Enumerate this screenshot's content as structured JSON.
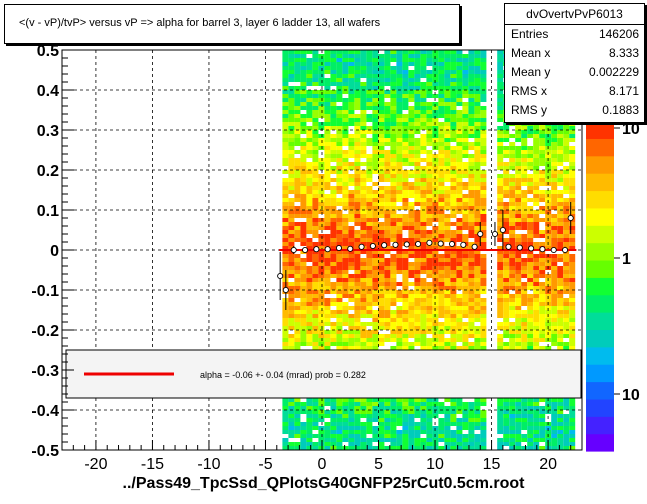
{
  "title": "<(v - vP)/tvP> versus   vP => alpha for barrel 3, layer 6 ladder 13, all wafers",
  "footer": "../Pass49_TpcSsd_QPlotsG40GNFP25rCut0.5cm.root",
  "stats": {
    "name": "dvOvertvPvP6013",
    "rows": [
      {
        "key": "Entries",
        "value": "146206"
      },
      {
        "key": "Mean x",
        "value": "8.333"
      },
      {
        "key": "Mean y",
        "value": "0.002229"
      },
      {
        "key": "RMS x",
        "value": "8.171"
      },
      {
        "key": "RMS y",
        "value": "0.1883"
      }
    ]
  },
  "legend": {
    "text": "alpha =   -0.06 +-  0.04 (mrad) prob = 0.282",
    "line_color": "#ee0000"
  },
  "colorbar": {
    "labels": [
      "10",
      "1",
      "10"
    ],
    "colors": [
      "#6600ff",
      "#4422ff",
      "#2244ff",
      "#1166ff",
      "#0099ff",
      "#00bbee",
      "#00ccbb",
      "#00dd99",
      "#00ee66",
      "#11ff33",
      "#66ff00",
      "#99ff00",
      "#ccff00",
      "#ffff00",
      "#ffdd00",
      "#ffbb00",
      "#ff9900",
      "#ff6600",
      "#ff3300"
    ]
  },
  "chart_data": {
    "type": "heatmap",
    "title": "<(v - vP)/tvP> versus   vP => alpha for barrel 3, layer 6 ladder 13, all wafers",
    "xlim": [
      -23,
      23
    ],
    "ylim": [
      -0.5,
      0.5
    ],
    "x_ticks": [
      -20,
      -15,
      -10,
      -5,
      0,
      5,
      10,
      15,
      20
    ],
    "x_tick_labels": [
      "-20",
      "-15",
      "-10",
      "-5",
      "0",
      "5",
      "10",
      "15",
      "20"
    ],
    "y_ticks": [
      -0.5,
      -0.4,
      -0.3,
      -0.2,
      -0.1,
      0,
      0.1,
      0.2,
      0.3,
      0.4,
      0.5
    ],
    "y_tick_labels": [
      "-0.5",
      "-0.4",
      "-0.3",
      "-0.2",
      "-0.1",
      "0",
      "0.1",
      "0.2",
      "0.3",
      "0.4",
      "0.5"
    ],
    "grid": true,
    "fit_line": {
      "y": 0,
      "x_range": [
        -3.8,
        22.5
      ],
      "color": "#ee0000"
    },
    "density_bands": [
      {
        "x_range": [
          -3.5,
          14.2
        ],
        "peak": 0,
        "width": 0.2
      },
      {
        "x_range": [
          15.5,
          22.3
        ],
        "peak": 0,
        "width": 0.18
      }
    ],
    "profile_points": {
      "x": [
        -3.7,
        -3.2,
        -2.5,
        -1.5,
        -0.5,
        0.5,
        1.5,
        2.5,
        3.5,
        4.5,
        5.5,
        6.5,
        7.5,
        8.5,
        9.5,
        10.5,
        11.5,
        12.5,
        13.5,
        14.0,
        15.3,
        16.0,
        16.5,
        17.5,
        18.5,
        19.5,
        20.5,
        21.5,
        22.0
      ],
      "y": [
        -0.065,
        -0.1,
        0.0,
        0.0,
        0.002,
        0.002,
        0.005,
        0.003,
        0.008,
        0.01,
        0.012,
        0.013,
        0.014,
        0.015,
        0.018,
        0.016,
        0.015,
        0.013,
        0.008,
        0.04,
        0.04,
        0.05,
        0.008,
        0.006,
        0.004,
        0.002,
        0.0,
        0.0,
        0.08
      ],
      "err": [
        0.06,
        0.05,
        0.01,
        0.005,
        0.004,
        0.004,
        0.004,
        0.004,
        0.004,
        0.004,
        0.004,
        0.004,
        0.004,
        0.004,
        0.004,
        0.004,
        0.004,
        0.004,
        0.004,
        0.03,
        0.03,
        0.05,
        0.006,
        0.005,
        0.005,
        0.005,
        0.006,
        0.008,
        0.04
      ]
    }
  }
}
